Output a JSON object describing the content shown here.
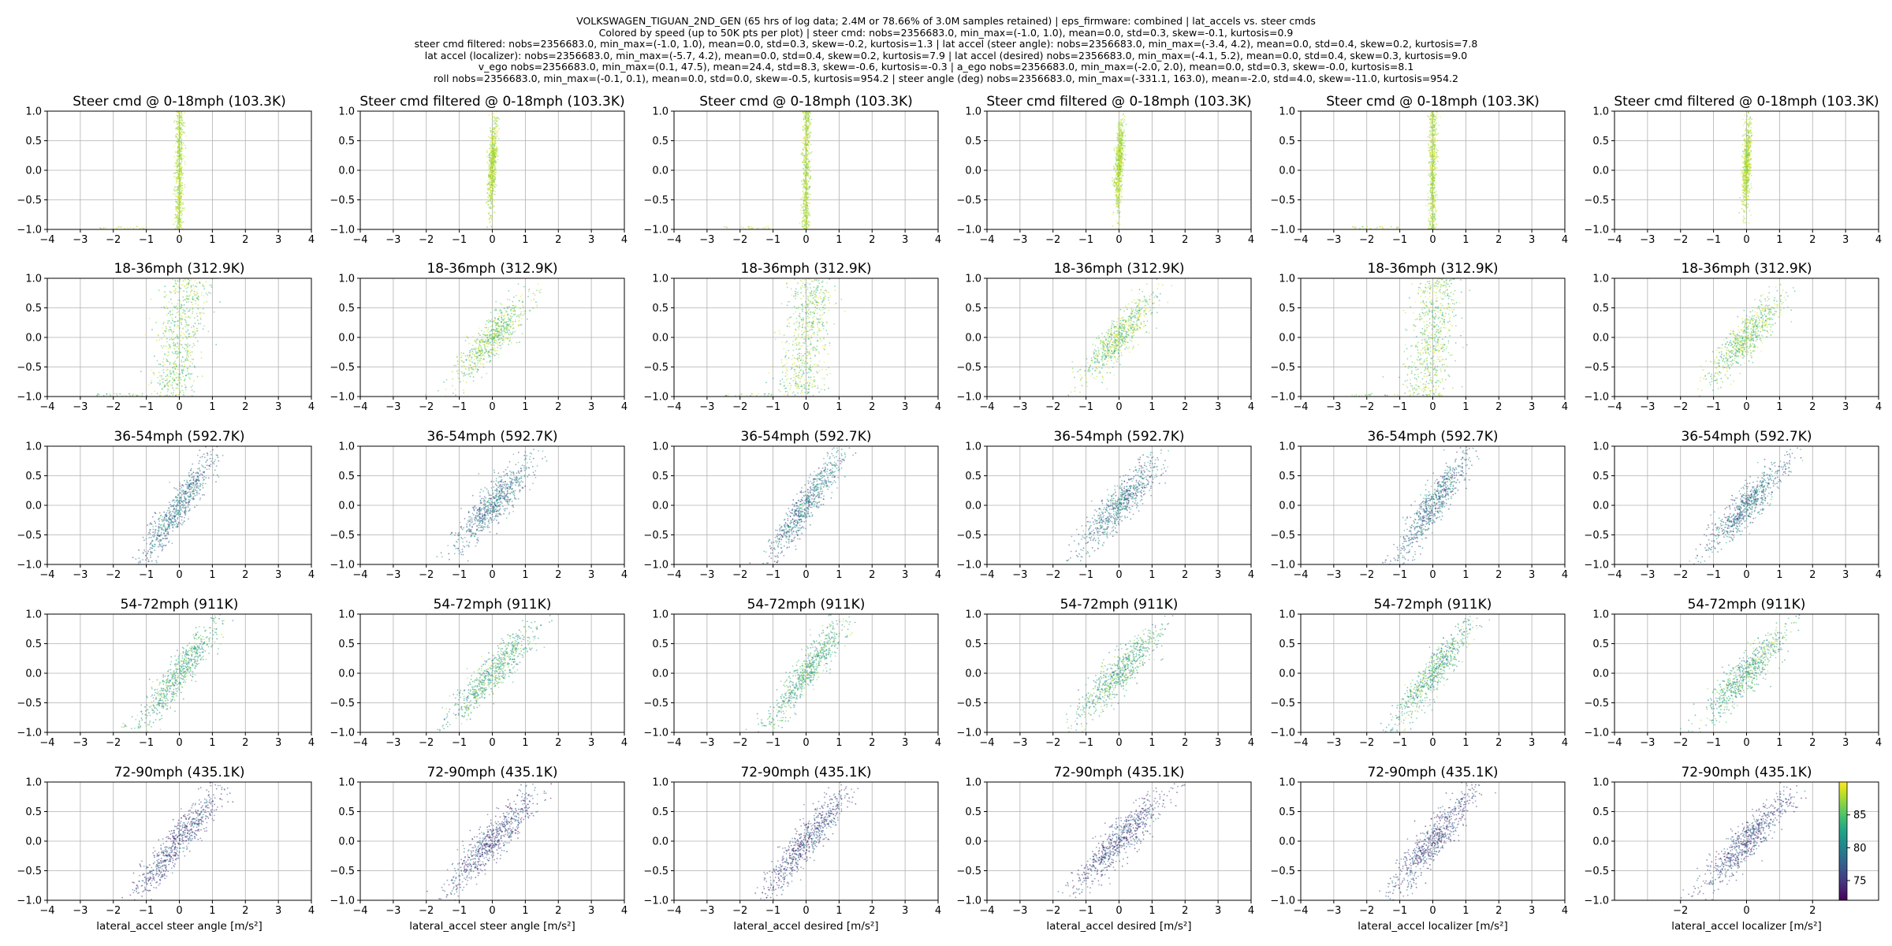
{
  "suptitle_lines": [
    "VOLKSWAGEN_TIGUAN_2ND_GEN (65 hrs of log data; 2.4M or 78.66% of 3.0M samples retained) | eps_firmware: combined | lat_accels vs. steer cmds",
    "Colored by  speed (up to 50K pts per plot) | steer cmd: nobs=2356683.0, min_max=(-1.0, 1.0), mean=0.0, std=0.3, skew=-0.1, kurtosis=0.9",
    "steer cmd filtered: nobs=2356683.0, min_max=(-1.0, 1.0), mean=0.0, std=0.3, skew=-0.2, kurtosis=1.3 | lat accel (steer angle): nobs=2356683.0, min_max=(-3.4, 4.2), mean=0.0, std=0.4, skew=0.2, kurtosis=7.8",
    "lat accel (localizer): nobs=2356683.0, min_max=(-5.7, 4.2), mean=0.0, std=0.4, skew=0.2, kurtosis=7.9 | lat accel (desired) nobs=2356683.0, min_max=(-4.1, 5.2), mean=0.0, std=0.4, skew=0.3, kurtosis=9.0",
    "v_ego nobs=2356683.0, min_max=(0.1, 47.5), mean=24.4, std=8.3, skew=-0.6, kurtosis=-0.3 | a_ego nobs=2356683.0, min_max=(-2.0, 2.0), mean=0.0, std=0.3, skew=-0.0, kurtosis=8.1",
    "roll nobs=2356683.0, min_max=(-0.1, 0.1), mean=0.0, std=0.0, skew=-0.5, kurtosis=954.2 | steer angle (deg) nobs=2356683.0, min_max=(-331.1, 163.0), mean=-2.0, std=4.0, skew=-11.0, kurtosis=954.2"
  ],
  "chart_data": {
    "type": "scatter",
    "layout": "grid 5 rows x 6 columns",
    "color_by": "speed",
    "colormap": "viridis",
    "colorbar": {
      "ticks": [
        75,
        80,
        85
      ],
      "range": [
        72,
        90
      ]
    },
    "xlim": [
      -4,
      4
    ],
    "ylim": [
      -1.0,
      1.0
    ],
    "xticks": [
      -4,
      -3,
      -2,
      -1,
      0,
      1,
      2,
      3,
      4
    ],
    "xticks_last_col_bottom": [
      -2,
      0,
      2
    ],
    "yticks": [
      -1.0,
      -0.5,
      0.0,
      0.5,
      1.0
    ],
    "grid": true,
    "columns": [
      {
        "name": "Steer cmd",
        "xlabel": "lateral_accel steer angle [m/s²]",
        "spread": "vertical"
      },
      {
        "name": "Steer cmd filtered",
        "xlabel": "lateral_accel steer angle [m/s²]",
        "spread": "diagonal"
      },
      {
        "name": "Steer cmd",
        "xlabel": "lateral_accel desired [m/s²]",
        "spread": "vertical"
      },
      {
        "name": "Steer cmd filtered",
        "xlabel": "lateral_accel desired [m/s²]",
        "spread": "diagonal"
      },
      {
        "name": "Steer cmd",
        "xlabel": "lateral_accel localizer [m/s²]",
        "spread": "vertical"
      },
      {
        "name": "Steer cmd filtered",
        "xlabel": "lateral_accel localizer [m/s²]",
        "spread": "diagonal"
      }
    ],
    "rows": [
      {
        "speed_bin": "0-18mph",
        "count": "103.3K",
        "titles": [
          "Steer cmd @ 0-18mph (103.3K)",
          "Steer cmd filtered @ 0-18mph (103.3K)",
          "Steer cmd @ 0-18mph (103.3K)",
          "Steer cmd filtered @ 0-18mph (103.3K)",
          "Steer cmd @ 0-18mph (103.3K)",
          "Steer cmd filtered @ 0-18mph (103.3K)"
        ],
        "speed_range": [
          0,
          18
        ]
      },
      {
        "speed_bin": "18-36mph",
        "count": "312.9K",
        "titles": [
          "18-36mph (312.9K)",
          "18-36mph (312.9K)",
          "18-36mph (312.9K)",
          "18-36mph (312.9K)",
          "18-36mph (312.9K)",
          "18-36mph (312.9K)"
        ],
        "speed_range": [
          18,
          36
        ]
      },
      {
        "speed_bin": "36-54mph",
        "count": "592.7K",
        "titles": [
          "36-54mph (592.7K)",
          "36-54mph (592.7K)",
          "36-54mph (592.7K)",
          "36-54mph (592.7K)",
          "36-54mph (592.7K)",
          "36-54mph (592.7K)"
        ],
        "speed_range": [
          36,
          54
        ]
      },
      {
        "speed_bin": "54-72mph",
        "count": "911K",
        "titles": [
          "54-72mph (911K)",
          "54-72mph (911K)",
          "54-72mph (911K)",
          "54-72mph (911K)",
          "54-72mph (911K)",
          "54-72mph (911K)"
        ],
        "speed_range": [
          54,
          72
        ]
      },
      {
        "speed_bin": "72-90mph",
        "count": "435.1K",
        "titles": [
          "72-90mph (435.1K)",
          "72-90mph (435.1K)",
          "72-90mph (435.1K)",
          "72-90mph (435.1K)",
          "72-90mph (435.1K)",
          "72-90mph (435.1K)"
        ],
        "speed_range": [
          72,
          90
        ]
      }
    ]
  }
}
